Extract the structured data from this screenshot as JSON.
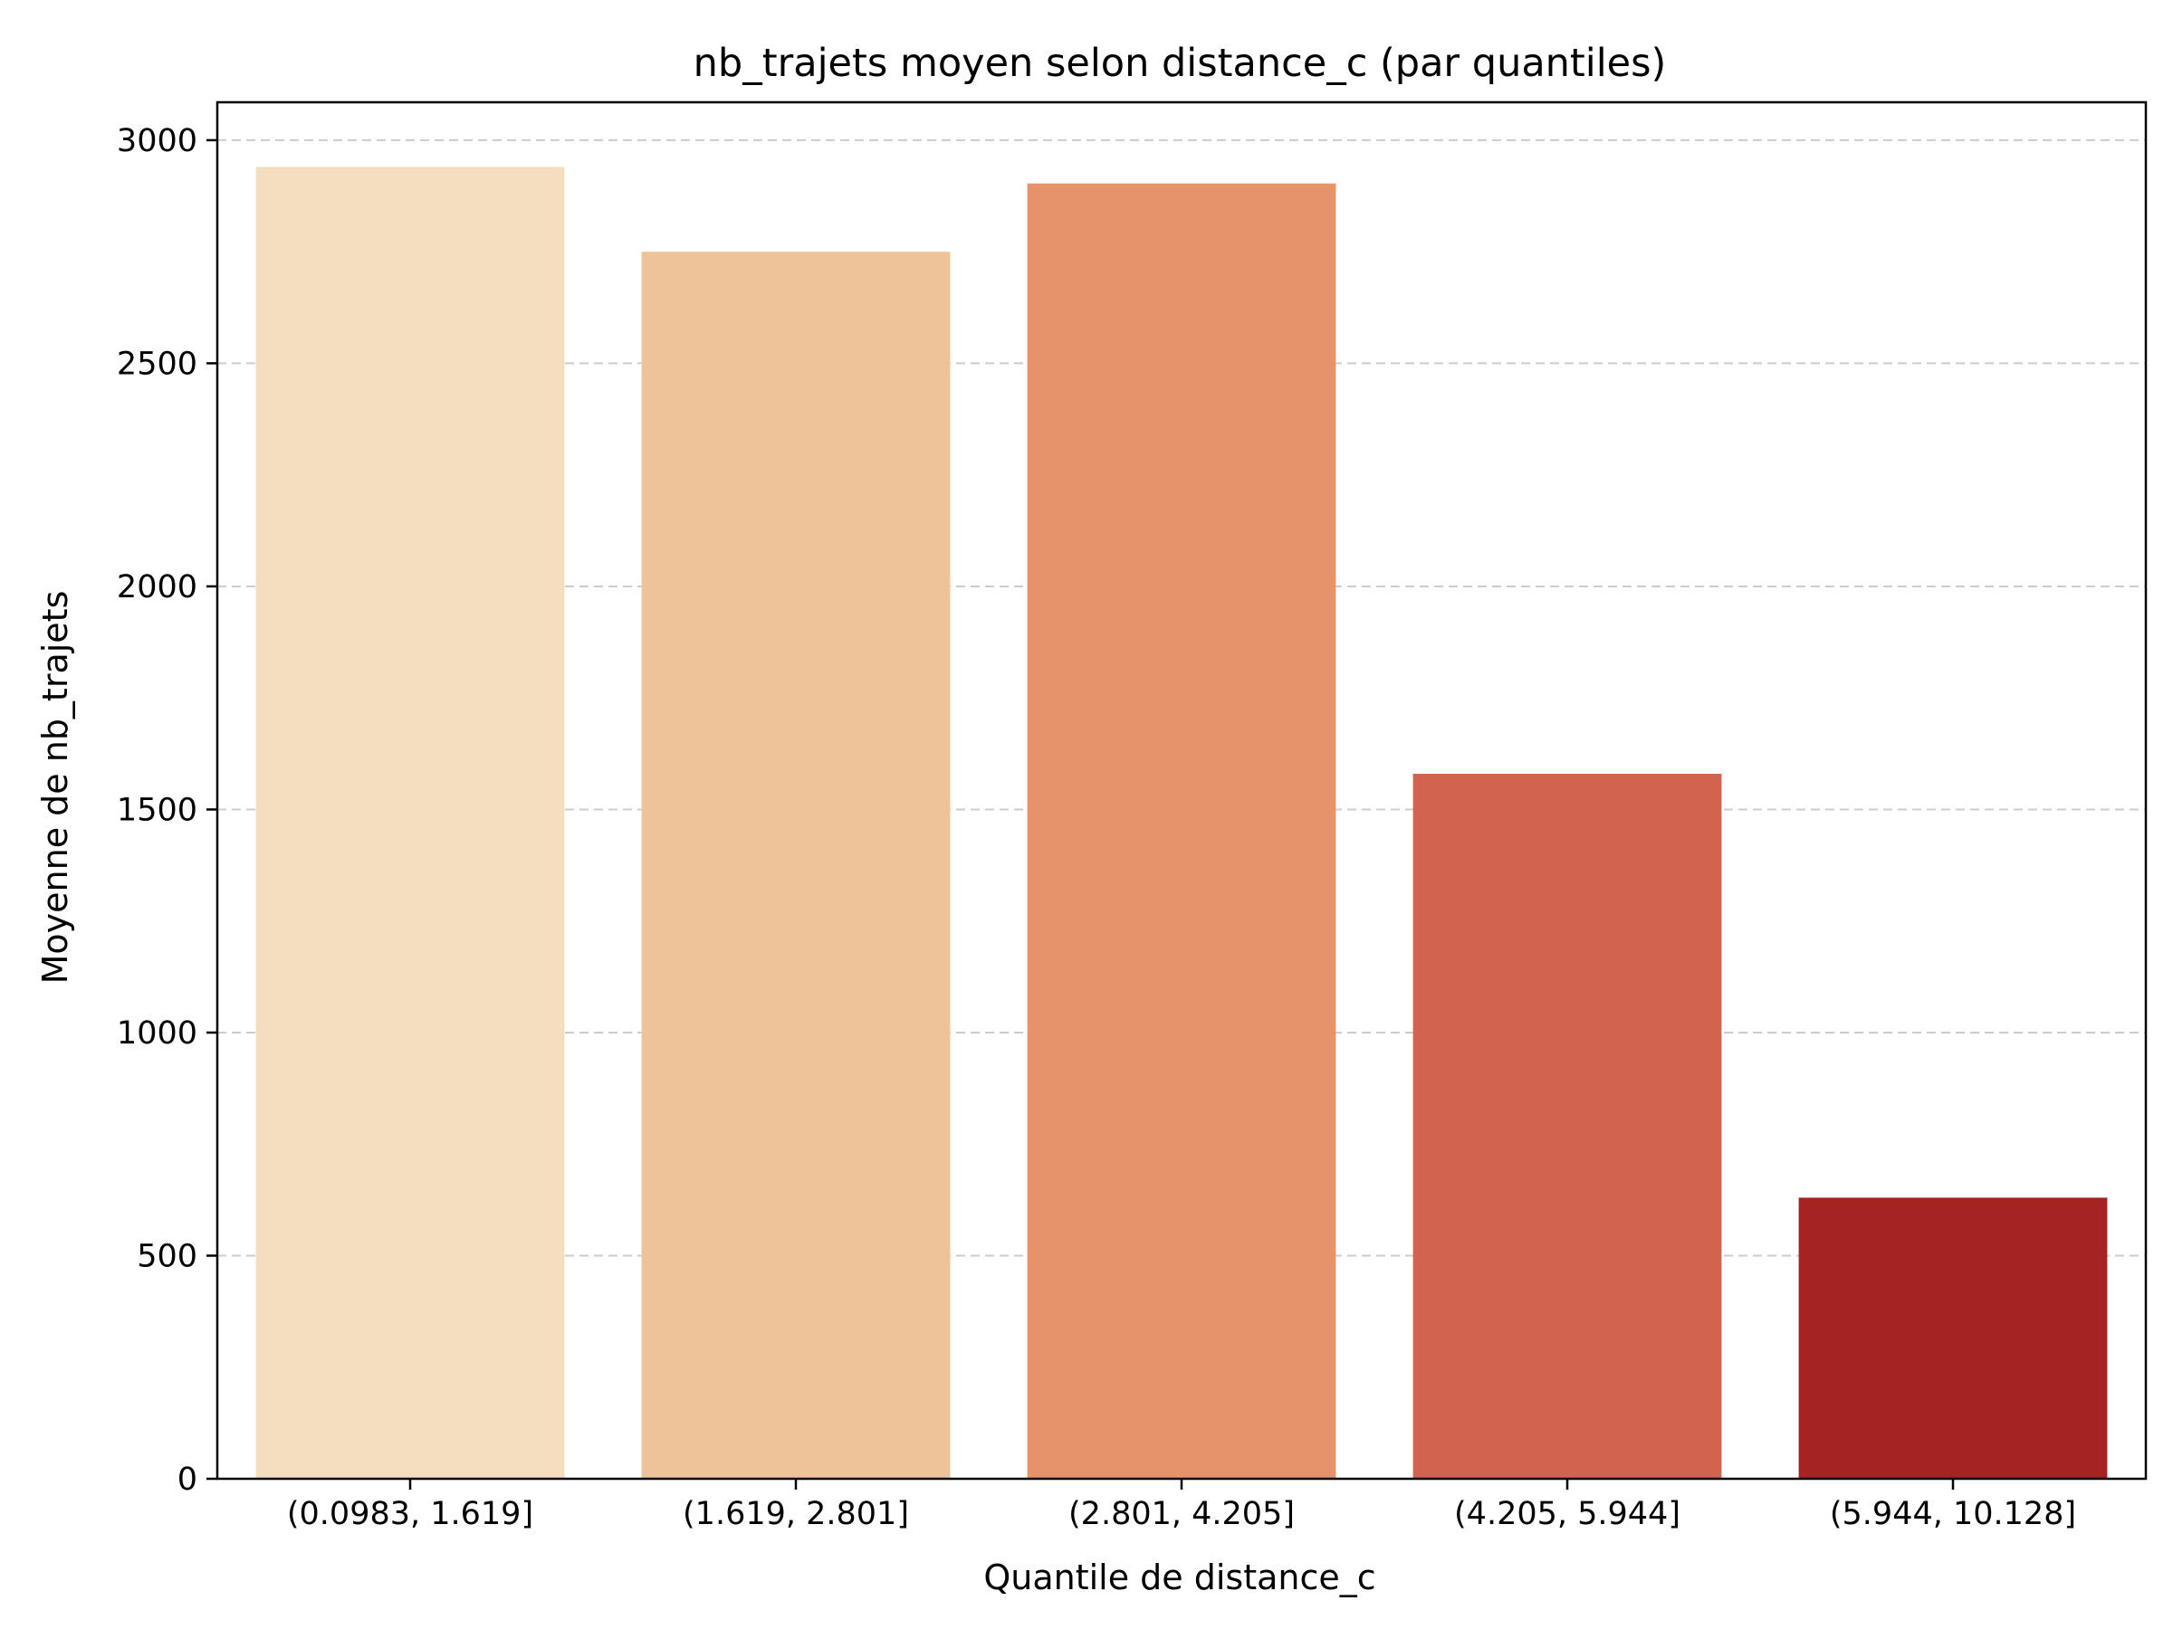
{
  "chart_data": {
    "type": "bar",
    "title": "nb_trajets moyen selon distance_c (par quantiles)",
    "xlabel": "Quantile de distance_c",
    "ylabel": "Moyenne de nb_trajets",
    "categories": [
      "(0.0983, 1.619]",
      "(1.619, 2.801]",
      "(2.801, 4.205]",
      "(4.205, 5.944]",
      "(5.944, 10.128]"
    ],
    "values": [
      2940,
      2750,
      2903,
      1580,
      630
    ],
    "colors": [
      "#f5dec0",
      "#efc39a",
      "#e6936c",
      "#d2634f",
      "#a52422"
    ],
    "ylim": [
      0,
      3085
    ],
    "yticks": [
      0,
      500,
      1000,
      1500,
      2000,
      2500,
      3000
    ],
    "grid": "y-dashed",
    "grid_color": "#cccccc"
  }
}
